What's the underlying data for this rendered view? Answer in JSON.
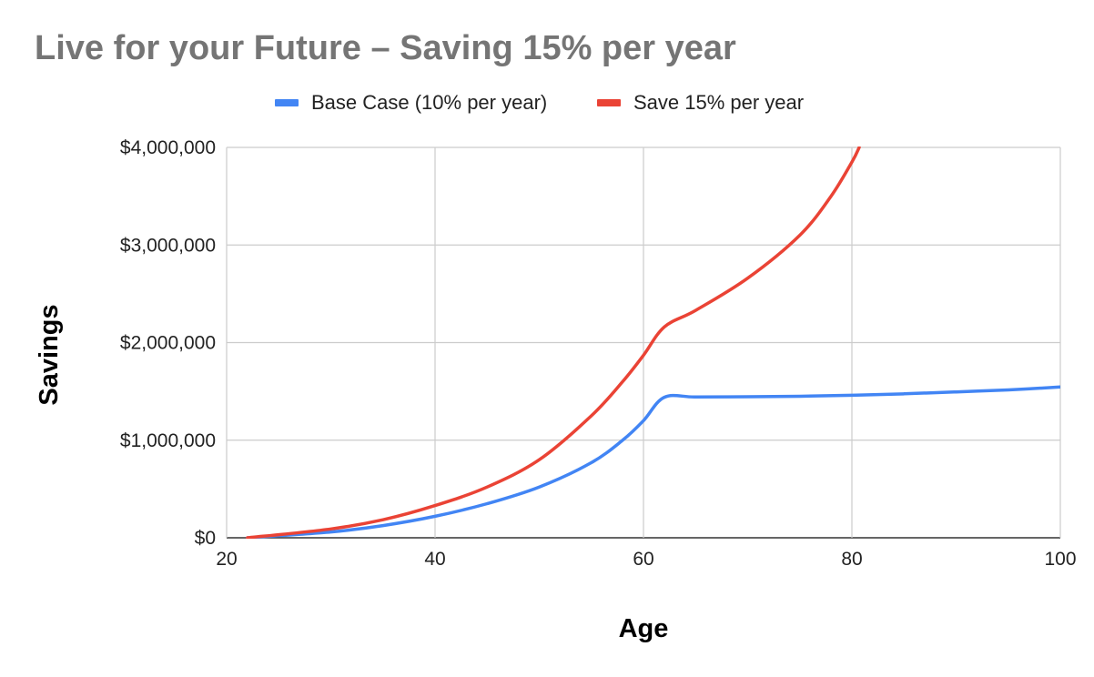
{
  "chart_data": {
    "type": "line",
    "title": "Live for your Future – Saving 15% per year",
    "xlabel": "Age",
    "ylabel": "Savings",
    "xlim": [
      20,
      100
    ],
    "ylim": [
      0,
      4000000
    ],
    "x_ticks": [
      {
        "value": 20,
        "label": "20"
      },
      {
        "value": 40,
        "label": "40"
      },
      {
        "value": 60,
        "label": "60"
      },
      {
        "value": 80,
        "label": "80"
      },
      {
        "value": 100,
        "label": "100"
      }
    ],
    "y_ticks": [
      {
        "value": 0,
        "label": "$0"
      },
      {
        "value": 1000000,
        "label": "$1,000,000"
      },
      {
        "value": 2000000,
        "label": "$2,000,000"
      },
      {
        "value": 3000000,
        "label": "$3,000,000"
      },
      {
        "value": 4000000,
        "label": "$4,000,000"
      }
    ],
    "grid": true,
    "legend_position": "top",
    "series": [
      {
        "name": "Base Case (10% per year)",
        "color": "#4285f4",
        "points": [
          [
            22,
            0
          ],
          [
            30,
            60000
          ],
          [
            35,
            125000
          ],
          [
            40,
            220000
          ],
          [
            45,
            350000
          ],
          [
            50,
            520000
          ],
          [
            55,
            770000
          ],
          [
            58,
            1000000
          ],
          [
            60,
            1200000
          ],
          [
            62,
            1440000
          ],
          [
            65,
            1442000
          ],
          [
            70,
            1445000
          ],
          [
            75,
            1450000
          ],
          [
            80,
            1460000
          ],
          [
            85,
            1475000
          ],
          [
            90,
            1495000
          ],
          [
            95,
            1515000
          ],
          [
            100,
            1545000
          ]
        ]
      },
      {
        "name": "Save 15% per year",
        "color": "#ea4335",
        "points": [
          [
            22,
            0
          ],
          [
            30,
            90000
          ],
          [
            35,
            185000
          ],
          [
            40,
            330000
          ],
          [
            45,
            520000
          ],
          [
            50,
            800000
          ],
          [
            55,
            1250000
          ],
          [
            58,
            1600000
          ],
          [
            60,
            1870000
          ],
          [
            62,
            2160000
          ],
          [
            65,
            2330000
          ],
          [
            70,
            2660000
          ],
          [
            75,
            3100000
          ],
          [
            78,
            3500000
          ],
          [
            80,
            3850000
          ],
          [
            80.7,
            4000000
          ]
        ]
      }
    ]
  }
}
